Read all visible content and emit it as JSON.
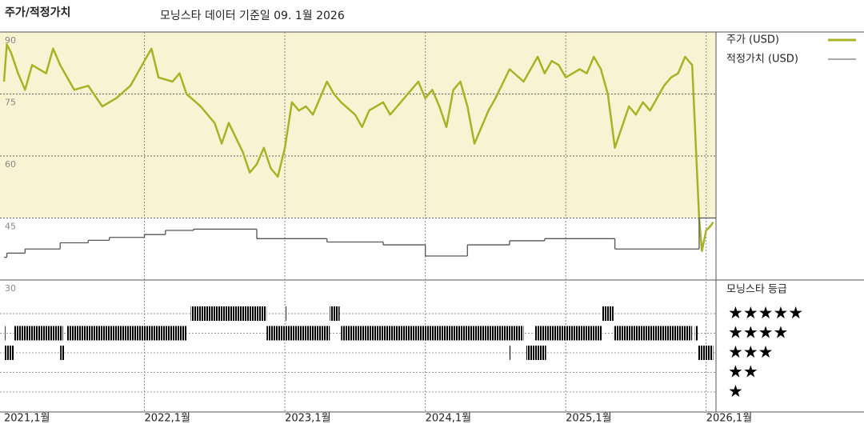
{
  "chart_data": {
    "type": "line",
    "title": "주가/적정가치",
    "subtitle": "모닝스타 데이터 기준일 09. 1월 2026",
    "xlim": [
      2021,
      2026.07
    ],
    "xticks": [
      {
        "value": 2021,
        "label": "2021,1월"
      },
      {
        "value": 2022,
        "label": "2022,1월"
      },
      {
        "value": 2023,
        "label": "2023,1월"
      },
      {
        "value": 2024,
        "label": "2024,1월"
      },
      {
        "value": 2025,
        "label": "2025,1월"
      },
      {
        "value": 2026,
        "label": "2026,1월"
      }
    ],
    "ylim": [
      30,
      90
    ],
    "yticks": [
      30,
      45,
      60,
      75,
      90
    ],
    "grid": true,
    "series": [
      {
        "name": "주가 (USD)",
        "color": "#a9b227",
        "x": [
          2021.0,
          2021.02,
          2021.05,
          2021.1,
          2021.15,
          2021.2,
          2021.3,
          2021.35,
          2021.4,
          2021.5,
          2021.6,
          2021.7,
          2021.8,
          2021.9,
          2022.0,
          2022.05,
          2022.1,
          2022.2,
          2022.25,
          2022.3,
          2022.4,
          2022.45,
          2022.5,
          2022.55,
          2022.6,
          2022.7,
          2022.75,
          2022.8,
          2022.85,
          2022.9,
          2022.95,
          2023.0,
          2023.05,
          2023.1,
          2023.15,
          2023.2,
          2023.3,
          2023.35,
          2023.4,
          2023.5,
          2023.55,
          2023.6,
          2023.7,
          2023.75,
          2023.8,
          2023.9,
          2023.95,
          2024.0,
          2024.05,
          2024.1,
          2024.15,
          2024.2,
          2024.25,
          2024.3,
          2024.35,
          2024.45,
          2024.5,
          2024.6,
          2024.7,
          2024.8,
          2024.85,
          2024.9,
          2024.95,
          2025.0,
          2025.1,
          2025.15,
          2025.2,
          2025.25,
          2025.3,
          2025.35,
          2025.4,
          2025.45,
          2025.5,
          2025.55,
          2025.6,
          2025.7,
          2025.75,
          2025.8,
          2025.85,
          2025.9,
          2025.95,
          2025.97,
          2026.0,
          2026.03,
          2026.05
        ],
        "values": [
          78,
          87,
          85,
          80,
          76,
          82,
          80,
          86,
          82,
          76,
          77,
          72,
          74,
          77,
          83,
          86,
          79,
          78,
          80,
          75,
          72,
          70,
          68,
          63,
          68,
          61,
          56,
          58,
          62,
          57,
          55,
          62,
          73,
          71,
          72,
          70,
          78,
          75,
          73,
          70,
          67,
          71,
          73,
          70,
          72,
          76,
          78,
          74,
          76,
          72,
          67,
          76,
          78,
          72,
          63,
          71,
          74,
          81,
          78,
          84,
          80,
          83,
          82,
          79,
          81,
          80,
          84,
          81,
          75,
          62,
          67,
          72,
          70,
          73,
          71,
          77,
          79,
          80,
          84,
          82,
          45,
          37,
          42,
          43,
          44
        ]
      },
      {
        "name": "적정가치 (USD)",
        "color": "#555555",
        "step": true,
        "x": [
          2021.0,
          2021.02,
          2021.15,
          2021.4,
          2021.6,
          2021.75,
          2022.0,
          2022.15,
          2022.35,
          2022.8,
          2023.3,
          2023.7,
          2024.0,
          2024.3,
          2024.6,
          2024.85,
          2025.35,
          2025.95
        ],
        "values": [
          35.5,
          36.5,
          37.5,
          39,
          39.6,
          40.3,
          41,
          42,
          42.3,
          40,
          39.2,
          38.5,
          35.8,
          38.5,
          39.5,
          40,
          37.5,
          45
        ]
      }
    ],
    "rating_title": "모닝스타 등급",
    "ratings": [
      {
        "label": "★★★★★",
        "color": "#3d8c6c",
        "periods": [
          [
            2022.33,
            2022.87
          ],
          [
            2023.0,
            2023.01
          ],
          [
            2023.32,
            2023.39
          ],
          [
            2025.26,
            2025.34
          ]
        ]
      },
      {
        "label": "★★★★",
        "color": "#222222",
        "periods": [
          [
            2021.0,
            2021.01
          ],
          [
            2021.07,
            2021.42
          ],
          [
            2021.45,
            2022.3
          ],
          [
            2022.87,
            2023.32
          ],
          [
            2023.4,
            2024.7
          ],
          [
            2024.78,
            2025.26
          ],
          [
            2025.34,
            2025.9
          ],
          [
            2025.92,
            2025.94
          ]
        ]
      },
      {
        "label": "★★★",
        "color": "#444444",
        "periods": [
          [
            2021.0,
            2021.07
          ],
          [
            2021.4,
            2021.43
          ],
          [
            2024.6,
            2024.61
          ],
          [
            2024.72,
            2024.86
          ],
          [
            2025.94,
            2026.05
          ]
        ]
      },
      {
        "label": "★★",
        "color": "#444444",
        "periods": []
      },
      {
        "label": "★",
        "color": "#444444",
        "periods": []
      }
    ]
  }
}
